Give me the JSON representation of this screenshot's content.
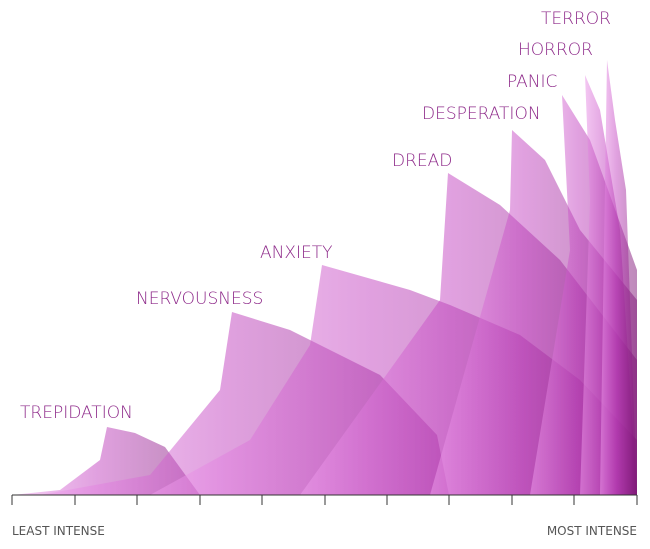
{
  "labels": [
    "TREPIDATION",
    "NERVOUSNESS",
    "ANXIETY",
    "DREAD",
    "DESPERATION",
    "PANIC",
    "HORROR",
    "TERROR"
  ],
  "axis": {
    "left": "LEAST INTENSE",
    "right": "MOST INTENSE"
  }
}
